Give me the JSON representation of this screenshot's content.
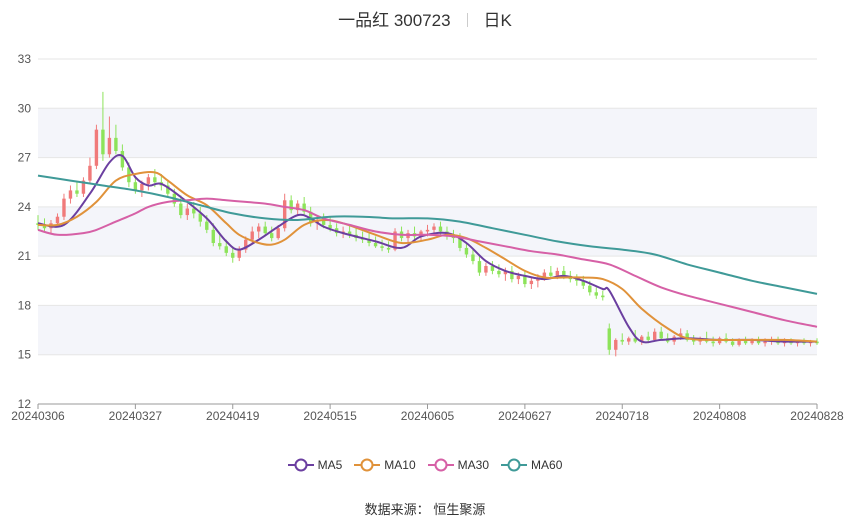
{
  "header": {
    "name": "一品红 300723",
    "period": "日K"
  },
  "source": {
    "label": "数据来源：",
    "provider": "恒生聚源"
  },
  "colors": {
    "up": "#f07a7a",
    "down": "#8de35a",
    "ma5": "#6b3fa0",
    "ma10": "#e0923a",
    "ma30": "#d660a6",
    "ma60": "#3f9a98",
    "band": "#f4f5fa",
    "grid": "#e6e6e6"
  },
  "chart_data": {
    "type": "candlestick",
    "ylim": [
      12,
      33
    ],
    "yticks": [
      12,
      15,
      18,
      21,
      24,
      27,
      30,
      33
    ],
    "grid": true,
    "legend_position": "bottom",
    "xticks": [
      "20240306",
      "20240327",
      "20240419",
      "20240515",
      "20240605",
      "20240627",
      "20240718",
      "20240808",
      "20240828"
    ],
    "xtick_index": [
      0,
      15,
      30,
      45,
      60,
      75,
      90,
      105,
      120
    ],
    "candles_ohlc": [
      [
        23.0,
        23.5,
        22.6,
        22.9
      ],
      [
        22.9,
        23.3,
        22.5,
        22.7
      ],
      [
        22.7,
        23.2,
        22.4,
        23.0
      ],
      [
        23.0,
        23.6,
        22.8,
        23.4
      ],
      [
        23.4,
        24.8,
        23.2,
        24.5
      ],
      [
        24.5,
        25.3,
        24.2,
        25.0
      ],
      [
        25.0,
        25.5,
        24.6,
        24.8
      ],
      [
        24.8,
        25.8,
        24.6,
        25.6
      ],
      [
        25.6,
        27.0,
        25.4,
        26.5
      ],
      [
        26.5,
        29.0,
        26.3,
        28.7
      ],
      [
        28.7,
        31.0,
        26.8,
        27.2
      ],
      [
        27.2,
        29.5,
        27.0,
        28.2
      ],
      [
        28.2,
        29.0,
        27.2,
        27.4
      ],
      [
        27.4,
        27.8,
        26.2,
        26.4
      ],
      [
        26.4,
        26.7,
        25.2,
        25.5
      ],
      [
        25.5,
        25.8,
        24.8,
        25.0
      ],
      [
        25.0,
        25.6,
        24.6,
        25.4
      ],
      [
        25.4,
        26.0,
        25.0,
        25.8
      ],
      [
        25.8,
        26.3,
        25.2,
        25.5
      ],
      [
        25.5,
        26.0,
        25.0,
        25.3
      ],
      [
        25.3,
        25.6,
        24.6,
        24.8
      ],
      [
        24.8,
        25.1,
        24.0,
        24.2
      ],
      [
        24.2,
        24.7,
        23.3,
        23.5
      ],
      [
        23.5,
        24.2,
        23.2,
        23.9
      ],
      [
        23.9,
        24.3,
        23.3,
        23.6
      ],
      [
        23.6,
        24.0,
        22.8,
        23.1
      ],
      [
        23.1,
        23.5,
        22.4,
        22.6
      ],
      [
        22.6,
        23.0,
        21.6,
        21.8
      ],
      [
        21.8,
        22.4,
        21.4,
        21.6
      ],
      [
        21.6,
        22.0,
        21.0,
        21.2
      ],
      [
        21.2,
        21.6,
        20.6,
        20.9
      ],
      [
        20.9,
        21.6,
        20.7,
        21.4
      ],
      [
        21.4,
        22.2,
        21.2,
        22.0
      ],
      [
        22.0,
        22.8,
        21.8,
        22.5
      ],
      [
        22.5,
        23.0,
        22.1,
        22.8
      ],
      [
        22.8,
        23.1,
        22.2,
        22.4
      ],
      [
        22.4,
        22.8,
        21.9,
        22.1
      ],
      [
        22.1,
        22.9,
        22.0,
        22.7
      ],
      [
        22.7,
        24.8,
        22.5,
        24.4
      ],
      [
        24.4,
        24.7,
        23.6,
        23.8
      ],
      [
        23.8,
        24.4,
        23.5,
        24.2
      ],
      [
        24.2,
        24.6,
        23.5,
        23.7
      ],
      [
        23.7,
        24.0,
        22.8,
        23.0
      ],
      [
        23.0,
        23.5,
        22.6,
        23.2
      ],
      [
        23.2,
        23.6,
        22.7,
        22.9
      ],
      [
        22.9,
        23.4,
        22.5,
        22.7
      ],
      [
        22.7,
        23.0,
        22.2,
        22.4
      ],
      [
        22.4,
        22.8,
        22.1,
        22.5
      ],
      [
        22.5,
        22.9,
        22.1,
        22.3
      ],
      [
        22.3,
        22.7,
        21.9,
        22.1
      ],
      [
        22.1,
        22.5,
        21.8,
        22.0
      ],
      [
        22.0,
        22.4,
        21.6,
        21.8
      ],
      [
        21.8,
        22.2,
        21.5,
        21.6
      ],
      [
        21.6,
        22.0,
        21.3,
        21.5
      ],
      [
        21.5,
        21.9,
        21.2,
        21.4
      ],
      [
        21.4,
        22.7,
        21.3,
        22.5
      ],
      [
        22.5,
        22.8,
        21.9,
        22.1
      ],
      [
        22.1,
        22.6,
        21.8,
        22.4
      ],
      [
        22.4,
        22.8,
        22.0,
        22.2
      ],
      [
        22.2,
        22.6,
        21.9,
        22.5
      ],
      [
        22.5,
        22.9,
        22.2,
        22.6
      ],
      [
        22.6,
        23.0,
        22.3,
        22.8
      ],
      [
        22.8,
        23.1,
        22.3,
        22.5
      ],
      [
        22.5,
        22.8,
        22.0,
        22.3
      ],
      [
        22.3,
        22.6,
        21.8,
        22.1
      ],
      [
        22.1,
        22.4,
        21.3,
        21.5
      ],
      [
        21.5,
        21.8,
        20.9,
        21.1
      ],
      [
        21.1,
        21.4,
        20.5,
        20.7
      ],
      [
        20.7,
        21.0,
        19.8,
        20.0
      ],
      [
        20.0,
        20.6,
        19.8,
        20.4
      ],
      [
        20.4,
        20.7,
        19.9,
        20.1
      ],
      [
        20.1,
        20.5,
        19.7,
        19.9
      ],
      [
        19.9,
        20.3,
        19.5,
        20.1
      ],
      [
        20.1,
        20.4,
        19.4,
        19.6
      ],
      [
        19.6,
        20.0,
        19.3,
        19.8
      ],
      [
        19.8,
        20.1,
        19.1,
        19.3
      ],
      [
        19.3,
        19.7,
        19.0,
        19.5
      ],
      [
        19.5,
        19.9,
        19.1,
        19.7
      ],
      [
        19.7,
        20.2,
        19.5,
        20.0
      ],
      [
        20.0,
        20.4,
        19.7,
        19.8
      ],
      [
        19.8,
        20.3,
        19.6,
        20.1
      ],
      [
        20.1,
        20.4,
        19.6,
        19.8
      ],
      [
        19.8,
        20.1,
        19.4,
        19.6
      ],
      [
        19.6,
        19.9,
        19.2,
        19.5
      ],
      [
        19.5,
        19.8,
        19.0,
        19.2
      ],
      [
        19.2,
        19.5,
        18.6,
        18.8
      ],
      [
        18.8,
        19.1,
        18.4,
        18.6
      ],
      [
        18.6,
        18.9,
        18.3,
        18.5
      ],
      [
        16.6,
        16.9,
        15.0,
        15.3
      ],
      [
        15.3,
        16.0,
        14.9,
        15.9
      ],
      [
        15.9,
        16.3,
        15.6,
        15.8
      ],
      [
        15.8,
        16.1,
        15.6,
        16.0
      ],
      [
        16.0,
        16.5,
        15.7,
        15.8
      ],
      [
        15.8,
        16.2,
        15.6,
        16.1
      ],
      [
        16.1,
        16.4,
        15.7,
        15.9
      ],
      [
        15.9,
        16.6,
        15.8,
        16.4
      ],
      [
        16.4,
        16.7,
        15.9,
        16.0
      ],
      [
        16.0,
        16.3,
        15.7,
        15.8
      ],
      [
        15.8,
        16.2,
        15.6,
        16.1
      ],
      [
        16.1,
        16.6,
        15.9,
        16.3
      ],
      [
        16.3,
        16.5,
        15.8,
        15.9
      ],
      [
        15.9,
        16.2,
        15.6,
        15.8
      ],
      [
        15.8,
        16.1,
        15.6,
        16.0
      ],
      [
        16.0,
        16.4,
        15.7,
        15.8
      ],
      [
        15.8,
        16.1,
        15.5,
        15.7
      ],
      [
        15.7,
        16.1,
        15.6,
        16.0
      ],
      [
        16.0,
        16.3,
        15.7,
        15.8
      ],
      [
        15.8,
        16.0,
        15.5,
        15.6
      ],
      [
        15.6,
        16.0,
        15.5,
        15.9
      ],
      [
        15.9,
        16.1,
        15.6,
        15.7
      ],
      [
        15.7,
        16.0,
        15.6,
        15.9
      ],
      [
        15.9,
        16.1,
        15.6,
        15.7
      ],
      [
        15.7,
        16.0,
        15.5,
        15.8
      ],
      [
        15.8,
        16.1,
        15.6,
        15.9
      ],
      [
        15.9,
        16.1,
        15.6,
        15.7
      ],
      [
        15.7,
        16.0,
        15.5,
        15.8
      ],
      [
        15.8,
        16.0,
        15.6,
        15.7
      ],
      [
        15.7,
        15.9,
        15.5,
        15.8
      ],
      [
        15.8,
        16.0,
        15.6,
        15.7
      ],
      [
        15.7,
        15.9,
        15.5,
        15.8
      ],
      [
        15.8,
        16.0,
        15.6,
        15.7
      ]
    ],
    "series": [
      {
        "name": "MA5",
        "key": "ma5",
        "points": [
          [
            0,
            23.0
          ],
          [
            4,
            22.9
          ],
          [
            8,
            24.8
          ],
          [
            11,
            26.7
          ],
          [
            13,
            27.1
          ],
          [
            15,
            25.8
          ],
          [
            17,
            25.3
          ],
          [
            19,
            25.4
          ],
          [
            22,
            24.6
          ],
          [
            26,
            23.3
          ],
          [
            29,
            21.9
          ],
          [
            31,
            21.4
          ],
          [
            34,
            22.0
          ],
          [
            37,
            22.8
          ],
          [
            40,
            23.5
          ],
          [
            42,
            23.3
          ],
          [
            44,
            22.8
          ],
          [
            47,
            22.4
          ],
          [
            52,
            21.9
          ],
          [
            56,
            21.5
          ],
          [
            59,
            22.2
          ],
          [
            63,
            22.4
          ],
          [
            66,
            21.8
          ],
          [
            69,
            20.7
          ],
          [
            72,
            20.1
          ],
          [
            75,
            19.8
          ],
          [
            78,
            19.6
          ],
          [
            81,
            19.8
          ],
          [
            84,
            19.5
          ],
          [
            87,
            19.0
          ],
          [
            88,
            18.9
          ],
          [
            91,
            16.7
          ],
          [
            93,
            15.8
          ],
          [
            96,
            15.9
          ],
          [
            100,
            16.0
          ],
          [
            105,
            15.9
          ],
          [
            110,
            15.9
          ],
          [
            115,
            15.8
          ],
          [
            120,
            15.8
          ]
        ]
      },
      {
        "name": "MA10",
        "key": "ma10",
        "points": [
          [
            0,
            22.9
          ],
          [
            3,
            22.9
          ],
          [
            6,
            23.4
          ],
          [
            9,
            24.3
          ],
          [
            12,
            25.6
          ],
          [
            15,
            26.0
          ],
          [
            18,
            26.1
          ],
          [
            20,
            25.6
          ],
          [
            23,
            24.7
          ],
          [
            26,
            24.1
          ],
          [
            29,
            23.0
          ],
          [
            31,
            22.3
          ],
          [
            34,
            21.8
          ],
          [
            36,
            21.7
          ],
          [
            38,
            22.0
          ],
          [
            41,
            22.9
          ],
          [
            44,
            23.2
          ],
          [
            47,
            23.0
          ],
          [
            52,
            22.3
          ],
          [
            56,
            21.8
          ],
          [
            60,
            22.0
          ],
          [
            63,
            22.3
          ],
          [
            66,
            22.1
          ],
          [
            69,
            21.5
          ],
          [
            72,
            20.8
          ],
          [
            75,
            20.1
          ],
          [
            78,
            19.7
          ],
          [
            81,
            19.7
          ],
          [
            84,
            19.7
          ],
          [
            87,
            19.6
          ],
          [
            90,
            19.0
          ],
          [
            93,
            17.8
          ],
          [
            97,
            16.6
          ],
          [
            100,
            16.0
          ],
          [
            104,
            15.9
          ],
          [
            110,
            15.9
          ],
          [
            115,
            15.9
          ],
          [
            120,
            15.8
          ]
        ]
      },
      {
        "name": "MA30",
        "key": "ma30",
        "points": [
          [
            0,
            22.6
          ],
          [
            3,
            22.3
          ],
          [
            7,
            22.4
          ],
          [
            9,
            22.6
          ],
          [
            12,
            23.1
          ],
          [
            15,
            23.6
          ],
          [
            17,
            24.0
          ],
          [
            20,
            24.3
          ],
          [
            23,
            24.4
          ],
          [
            26,
            24.5
          ],
          [
            29,
            24.4
          ],
          [
            32,
            24.3
          ],
          [
            35,
            24.2
          ],
          [
            38,
            24.0
          ],
          [
            41,
            23.8
          ],
          [
            44,
            23.3
          ],
          [
            48,
            22.9
          ],
          [
            52,
            22.5
          ],
          [
            56,
            22.3
          ],
          [
            60,
            22.3
          ],
          [
            64,
            22.2
          ],
          [
            68,
            21.9
          ],
          [
            72,
            21.6
          ],
          [
            76,
            21.3
          ],
          [
            80,
            21.1
          ],
          [
            84,
            20.8
          ],
          [
            88,
            20.5
          ],
          [
            92,
            19.8
          ],
          [
            96,
            19.1
          ],
          [
            100,
            18.6
          ],
          [
            105,
            18.1
          ],
          [
            110,
            17.6
          ],
          [
            115,
            17.1
          ],
          [
            120,
            16.7
          ]
        ]
      },
      {
        "name": "MA60",
        "key": "ma60",
        "points": [
          [
            0,
            25.9
          ],
          [
            5,
            25.6
          ],
          [
            10,
            25.3
          ],
          [
            15,
            25.0
          ],
          [
            20,
            24.6
          ],
          [
            25,
            24.1
          ],
          [
            30,
            23.6
          ],
          [
            35,
            23.3
          ],
          [
            40,
            23.2
          ],
          [
            45,
            23.4
          ],
          [
            50,
            23.4
          ],
          [
            55,
            23.3
          ],
          [
            60,
            23.3
          ],
          [
            65,
            23.1
          ],
          [
            70,
            22.7
          ],
          [
            75,
            22.3
          ],
          [
            80,
            21.9
          ],
          [
            85,
            21.6
          ],
          [
            90,
            21.4
          ],
          [
            95,
            21.1
          ],
          [
            100,
            20.5
          ],
          [
            105,
            20.0
          ],
          [
            110,
            19.5
          ],
          [
            115,
            19.1
          ],
          [
            120,
            18.7
          ]
        ]
      }
    ]
  }
}
